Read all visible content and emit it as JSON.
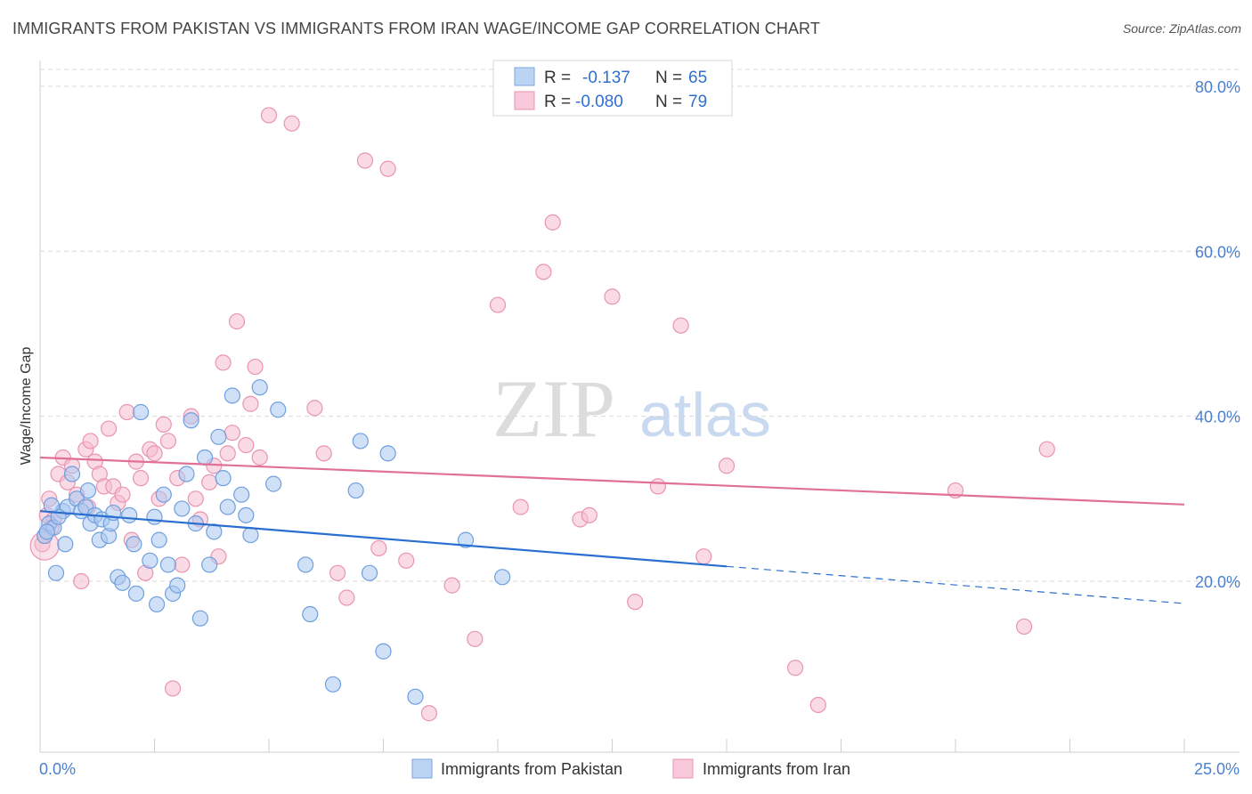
{
  "header": {
    "title": "IMMIGRANTS FROM PAKISTAN VS IMMIGRANTS FROM IRAN WAGE/INCOME GAP CORRELATION CHART",
    "source": "Source: ZipAtlas.com"
  },
  "watermark": {
    "zip": "ZIP",
    "atlas": "atlas"
  },
  "colors": {
    "pakistan_fill": "#a9c8f0",
    "pakistan_stroke": "#6f9fde",
    "pakistan_line": "#2a6fd0",
    "iran_fill": "#f6bcd0",
    "iran_stroke": "#e994b2",
    "iran_line": "#e0709a",
    "grid": "#d9d9d9",
    "tick_label": "#4a7fcf"
  },
  "legend": {
    "rows": [
      {
        "r_label": "R =",
        "r_value": "-0.137",
        "n_label": "N =",
        "n_value": "65"
      },
      {
        "r_label": "R =",
        "r_value": "-0.080",
        "n_label": "N =",
        "n_value": "79"
      }
    ]
  },
  "bottom_legend": {
    "items": [
      "Immigrants from Pakistan",
      "Immigrants from Iran"
    ]
  },
  "chart_data": {
    "type": "scatter",
    "title": "IMMIGRANTS FROM PAKISTAN VS IMMIGRANTS FROM IRAN WAGE/INCOME GAP CORRELATION CHART",
    "xlabel": "",
    "ylabel": "Wage/Income Gap",
    "xlim": [
      0,
      25
    ],
    "ylim": [
      0,
      80
    ],
    "x_tick_labels": [
      "0.0%",
      "25.0%"
    ],
    "y_ticks": [
      20,
      40,
      60,
      80
    ],
    "y_tick_labels": [
      "20.0%",
      "40.0%",
      "60.0%",
      "80.0%"
    ],
    "series": [
      {
        "name": "Immigrants from Pakistan",
        "r": -0.137,
        "n": 65,
        "trend": {
          "x0": 0,
          "y0": 28.5,
          "x1": 15,
          "y1": 21.8,
          "dash_to_x": 25,
          "dash_to_y": 17.3
        },
        "points": [
          [
            0.1,
            25.5
          ],
          [
            0.2,
            27
          ],
          [
            0.3,
            26.5
          ],
          [
            0.35,
            21
          ],
          [
            0.5,
            28.5
          ],
          [
            0.55,
            24.5
          ],
          [
            0.6,
            29
          ],
          [
            0.7,
            33
          ],
          [
            0.8,
            30
          ],
          [
            0.9,
            28.5
          ],
          [
            1.0,
            29
          ],
          [
            1.05,
            31
          ],
          [
            1.1,
            27
          ],
          [
            1.2,
            28
          ],
          [
            1.3,
            25
          ],
          [
            1.35,
            27.5
          ],
          [
            1.5,
            25.5
          ],
          [
            1.55,
            27
          ],
          [
            1.7,
            20.5
          ],
          [
            1.8,
            19.8
          ],
          [
            1.95,
            28
          ],
          [
            2.05,
            24.5
          ],
          [
            2.1,
            18.5
          ],
          [
            2.4,
            22.5
          ],
          [
            2.5,
            27.8
          ],
          [
            2.6,
            25
          ],
          [
            2.7,
            30.5
          ],
          [
            2.8,
            22
          ],
          [
            2.9,
            18.5
          ],
          [
            3.0,
            19.5
          ],
          [
            3.2,
            33
          ],
          [
            3.3,
            39.5
          ],
          [
            3.4,
            27
          ],
          [
            3.5,
            15.5
          ],
          [
            3.6,
            35
          ],
          [
            3.7,
            22
          ],
          [
            3.8,
            26
          ],
          [
            3.9,
            37.5
          ],
          [
            4.0,
            32.5
          ],
          [
            4.1,
            29
          ],
          [
            4.2,
            42.5
          ],
          [
            4.4,
            30.5
          ],
          [
            4.5,
            28
          ],
          [
            4.8,
            43.5
          ],
          [
            5.1,
            31.8
          ],
          [
            5.2,
            40.8
          ],
          [
            5.8,
            22
          ],
          [
            5.9,
            16
          ],
          [
            6.4,
            7.5
          ],
          [
            6.9,
            31
          ],
          [
            7.0,
            37
          ],
          [
            7.2,
            21
          ],
          [
            7.5,
            11.5
          ],
          [
            7.6,
            35.5
          ],
          [
            8.2,
            6
          ],
          [
            9.3,
            25
          ],
          [
            10.1,
            20.5
          ],
          [
            0.15,
            26
          ],
          [
            0.4,
            27.8
          ],
          [
            1.6,
            28.3
          ],
          [
            2.2,
            40.5
          ],
          [
            3.1,
            28.8
          ],
          [
            4.6,
            25.6
          ],
          [
            0.25,
            29.2
          ],
          [
            2.55,
            17.2
          ]
        ]
      },
      {
        "name": "Immigrants from Iran",
        "r": -0.08,
        "n": 79,
        "trend": {
          "x0": 0,
          "y0": 35.0,
          "x1": 25,
          "y1": 29.3
        },
        "points": [
          [
            0.05,
            24.5
          ],
          [
            0.1,
            25.5
          ],
          [
            0.15,
            28
          ],
          [
            0.2,
            30
          ],
          [
            0.3,
            27.5
          ],
          [
            0.4,
            33
          ],
          [
            0.5,
            35
          ],
          [
            0.6,
            32
          ],
          [
            0.7,
            34
          ],
          [
            0.8,
            30.5
          ],
          [
            0.9,
            20
          ],
          [
            1.0,
            36
          ],
          [
            1.05,
            29
          ],
          [
            1.1,
            37
          ],
          [
            1.2,
            34.5
          ],
          [
            1.3,
            33
          ],
          [
            1.4,
            31.5
          ],
          [
            1.5,
            38.5
          ],
          [
            1.6,
            31.5
          ],
          [
            1.7,
            29.5
          ],
          [
            1.8,
            30.5
          ],
          [
            1.9,
            40.5
          ],
          [
            2.0,
            25
          ],
          [
            2.1,
            34.5
          ],
          [
            2.2,
            32.5
          ],
          [
            2.3,
            21
          ],
          [
            2.4,
            36
          ],
          [
            2.5,
            35.5
          ],
          [
            2.6,
            30
          ],
          [
            2.7,
            39
          ],
          [
            2.8,
            37
          ],
          [
            2.9,
            7
          ],
          [
            3.0,
            32.5
          ],
          [
            3.1,
            22
          ],
          [
            3.3,
            40
          ],
          [
            3.4,
            30
          ],
          [
            3.5,
            27.5
          ],
          [
            3.7,
            32
          ],
          [
            3.8,
            34
          ],
          [
            3.9,
            23
          ],
          [
            4.0,
            46.5
          ],
          [
            4.1,
            35.5
          ],
          [
            4.2,
            38
          ],
          [
            4.3,
            51.5
          ],
          [
            4.5,
            36.5
          ],
          [
            4.6,
            41.5
          ],
          [
            4.7,
            46
          ],
          [
            4.8,
            35
          ],
          [
            5.0,
            76.5
          ],
          [
            5.5,
            75.5
          ],
          [
            6.0,
            41
          ],
          [
            6.2,
            35.5
          ],
          [
            6.5,
            21
          ],
          [
            6.7,
            18
          ],
          [
            7.1,
            71
          ],
          [
            7.4,
            24
          ],
          [
            7.6,
            70
          ],
          [
            8.0,
            22.5
          ],
          [
            8.5,
            4
          ],
          [
            9.0,
            19.5
          ],
          [
            9.5,
            13
          ],
          [
            10.0,
            53.5
          ],
          [
            10.5,
            29
          ],
          [
            11.0,
            57.5
          ],
          [
            11.2,
            63.5
          ],
          [
            11.8,
            27.5
          ],
          [
            12.0,
            28
          ],
          [
            12.5,
            54.5
          ],
          [
            13.0,
            17.5
          ],
          [
            13.5,
            31.5
          ],
          [
            14.0,
            51
          ],
          [
            14.5,
            23
          ],
          [
            15.0,
            34
          ],
          [
            16.5,
            9.5
          ],
          [
            17.0,
            5
          ],
          [
            20.0,
            31
          ],
          [
            21.5,
            14.5
          ],
          [
            22.0,
            36
          ],
          [
            0.25,
            26.5
          ]
        ]
      }
    ]
  }
}
